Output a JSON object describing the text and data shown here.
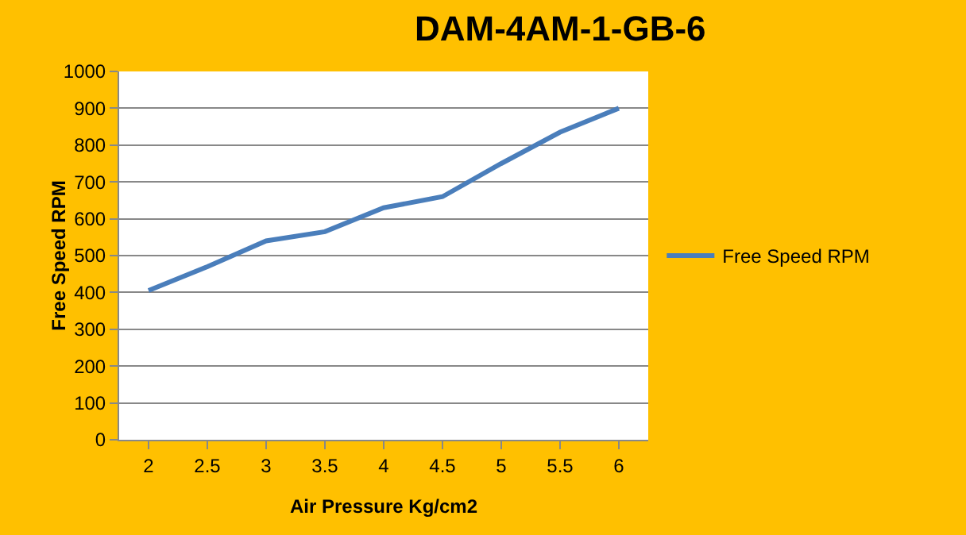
{
  "chart_data": {
    "type": "line",
    "title": "DAM-4AM-1-GB-6",
    "xlabel": "Air Pressure Kg/cm2",
    "ylabel": "Free Speed RPM",
    "categories": [
      "2",
      "2.5",
      "3",
      "3.5",
      "4",
      "4.5",
      "5",
      "5.5",
      "6"
    ],
    "series": [
      {
        "name": "Free Speed RPM",
        "color": "#4a7ebb",
        "values": [
          405,
          470,
          540,
          565,
          630,
          660,
          750,
          835,
          900
        ]
      }
    ],
    "ylim": [
      0,
      1000
    ],
    "yticks": [
      0,
      100,
      200,
      300,
      400,
      500,
      600,
      700,
      800,
      900,
      1000
    ],
    "grid": "y",
    "legend": "right",
    "marker": "none",
    "line_style": "solid"
  }
}
